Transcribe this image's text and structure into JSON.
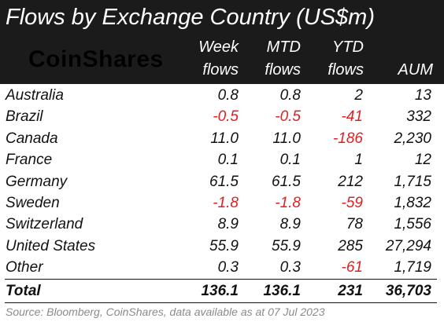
{
  "title": "Flows by Exchange Country (US$m)",
  "logo_text": "CoinShares",
  "columns": {
    "week": [
      "Week",
      "flows"
    ],
    "mtd": [
      "MTD",
      "flows"
    ],
    "ytd": [
      "YTD",
      "flows"
    ],
    "aum": "AUM"
  },
  "rows": [
    {
      "name": "Australia",
      "week": "0.8",
      "mtd": "0.8",
      "ytd": "2",
      "aum": "13"
    },
    {
      "name": "Brazil",
      "week": "-0.5",
      "mtd": "-0.5",
      "ytd": "-41",
      "aum": "332"
    },
    {
      "name": "Canada",
      "week": "11.0",
      "mtd": "11.0",
      "ytd": "-186",
      "aum": "2,230"
    },
    {
      "name": "France",
      "week": "0.1",
      "mtd": "0.1",
      "ytd": "1",
      "aum": "12"
    },
    {
      "name": "Germany",
      "week": "61.5",
      "mtd": "61.5",
      "ytd": "212",
      "aum": "1,715"
    },
    {
      "name": "Sweden",
      "week": "-1.8",
      "mtd": "-1.8",
      "ytd": "-59",
      "aum": "1,832"
    },
    {
      "name": "Switzerland",
      "week": "8.9",
      "mtd": "8.9",
      "ytd": "78",
      "aum": "1,556"
    },
    {
      "name": "United States",
      "week": "55.9",
      "mtd": "55.9",
      "ytd": "285",
      "aum": "27,294"
    },
    {
      "name": "Other",
      "week": "0.3",
      "mtd": "0.3",
      "ytd": "-61",
      "aum": "1,719"
    }
  ],
  "total": {
    "name": "Total",
    "week": "136.1",
    "mtd": "136.1",
    "ytd": "231",
    "aum": "36,703"
  },
  "source": "Source: Bloomberg, CoinShares, data available as at 07 Jul 2023",
  "colors": {
    "header_bg": "#1b1b1b",
    "negative": "#e02020",
    "source_text": "#8a8a8a"
  }
}
